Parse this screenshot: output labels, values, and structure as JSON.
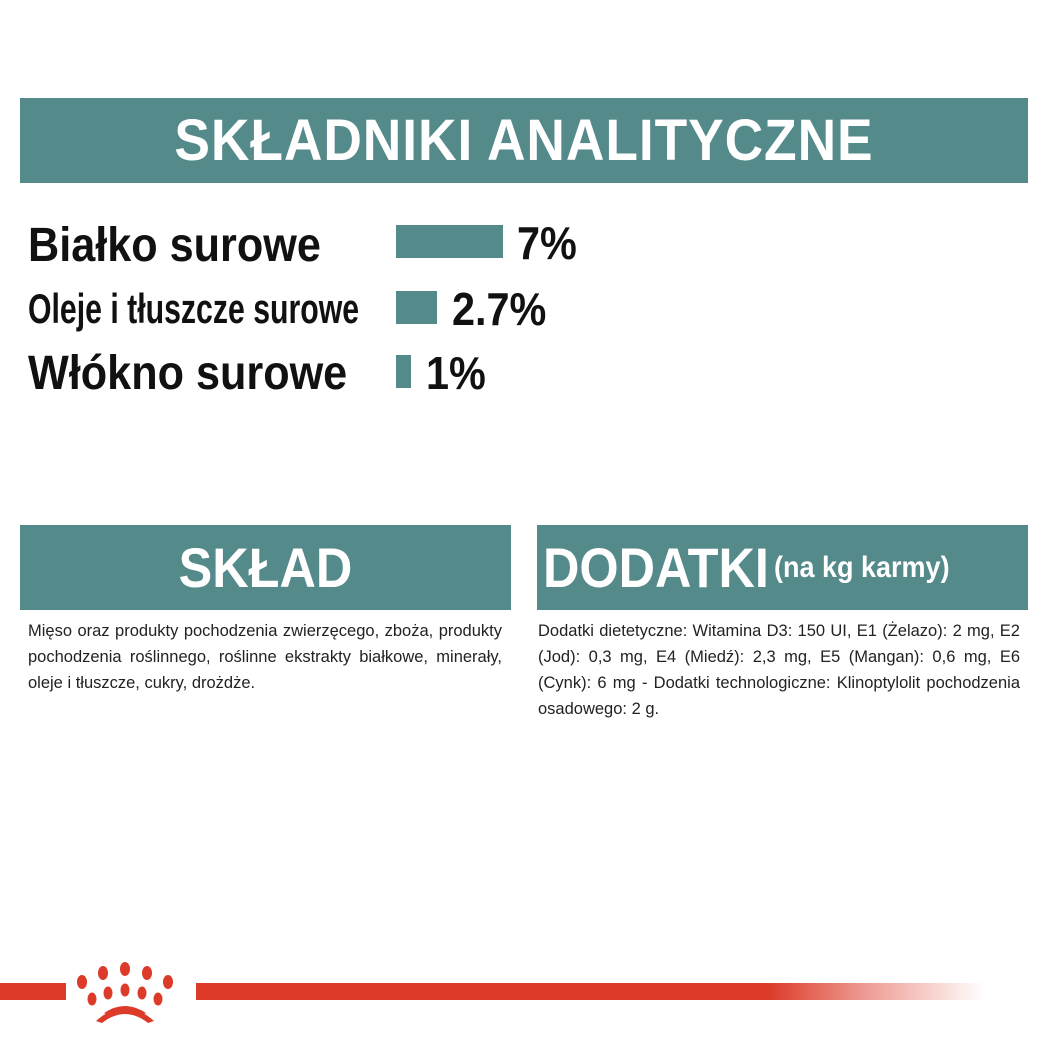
{
  "analytic": {
    "title": "SKŁADNIKI ANALITYCZNE",
    "accent": "#558a8b",
    "items": [
      {
        "label": "Białko surowe",
        "value": "7%",
        "percent": 7
      },
      {
        "label": "Oleje i tłuszcze surowe",
        "value": "2.7%",
        "percent": 2.7
      },
      {
        "label": "Włókno surowe",
        "value": "1%",
        "percent": 1
      }
    ]
  },
  "composition": {
    "title": "SKŁAD",
    "text": "Mięso oraz produkty pochodzenia zwierzęcego, zboża, produkty pochodzenia roślinnego, roślinne ekstrakty białkowe, minerały, oleje i tłuszcze, cukry, drożdże."
  },
  "additives": {
    "title": "DODATKI",
    "subtitle": "(na kg karmy)",
    "text": "Dodatki dietetyczne: Witamina D3: 150 UI, E1 (Żelazo): 2 mg, E2 (Jod): 0,3 mg, E4 (Miedź): 2,3 mg, E5 (Mangan): 0,6 mg, E6 (Cynk): 6 mg - Dodatki technologiczne: Klinoptylolit pochodzenia osadowego: 2 g."
  },
  "footer": {
    "brand_color": "#dc3b2a",
    "logo": "crown-logo-icon"
  }
}
